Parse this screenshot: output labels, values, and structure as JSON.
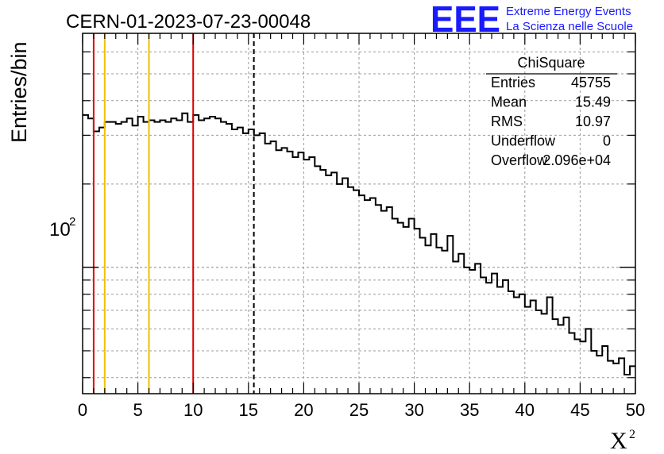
{
  "header": {
    "run_title": "CERN-01-2023-07-23-00048",
    "logo_text": "EEE",
    "logo_line1": "Extreme Energy Events",
    "logo_line2": "La Scienza nelle Scuole"
  },
  "stats_box": {
    "title": "ChiSquare",
    "rows": [
      {
        "label": "Entries",
        "value": "45755"
      },
      {
        "label": "Mean",
        "value": "15.49"
      },
      {
        "label": "RMS",
        "value": "10.97"
      },
      {
        "label": "Underflow",
        "value": "0"
      },
      {
        "label": "Overflow",
        "value": "2.096e+04"
      }
    ]
  },
  "colors": {
    "histogram": "#000000",
    "red_line": "#e00000",
    "yellow_line": "#f0c000",
    "mean_line": "#000000",
    "grid": "#9a9a9a",
    "logo": "#1a1aff"
  },
  "chart_data": {
    "type": "histogram",
    "xlabel": "X",
    "xlabel_sup": "2",
    "ylabel": "Entries/bin",
    "xlim": [
      0,
      50
    ],
    "ylim": [
      35,
      700
    ],
    "log_y": true,
    "grid": true,
    "bin_width": 0.5,
    "x_ticks": [
      0,
      5,
      10,
      15,
      20,
      25,
      30,
      35,
      40,
      45,
      50
    ],
    "y_tick_label": {
      "base": "10",
      "exp": "2",
      "value": 100
    },
    "values": [
      355,
      345,
      310,
      320,
      335,
      335,
      330,
      335,
      345,
      325,
      350,
      335,
      340,
      335,
      340,
      335,
      345,
      340,
      360,
      335,
      355,
      340,
      345,
      350,
      345,
      335,
      330,
      315,
      320,
      305,
      315,
      300,
      305,
      280,
      285,
      265,
      270,
      262,
      250,
      260,
      245,
      250,
      232,
      225,
      215,
      220,
      200,
      210,
      195,
      190,
      182,
      175,
      178,
      168,
      160,
      165,
      150,
      145,
      140,
      150,
      138,
      128,
      120,
      132,
      118,
      115,
      130,
      105,
      112,
      100,
      98,
      103,
      92,
      88,
      95,
      85,
      90,
      82,
      78,
      80,
      72,
      76,
      70,
      68,
      78,
      65,
      62,
      66,
      58,
      55,
      54,
      60,
      50,
      48,
      52,
      46,
      45,
      47,
      41,
      44
    ],
    "vertical_lines": [
      {
        "x": 1.0,
        "color": "red",
        "style": "solid"
      },
      {
        "x": 2.0,
        "color": "yellow",
        "style": "solid"
      },
      {
        "x": 6.0,
        "color": "yellow",
        "style": "solid"
      },
      {
        "x": 10.0,
        "color": "red",
        "style": "solid"
      },
      {
        "x": 15.49,
        "color": "black",
        "style": "dashed"
      }
    ],
    "legend_placement": "top-right"
  }
}
